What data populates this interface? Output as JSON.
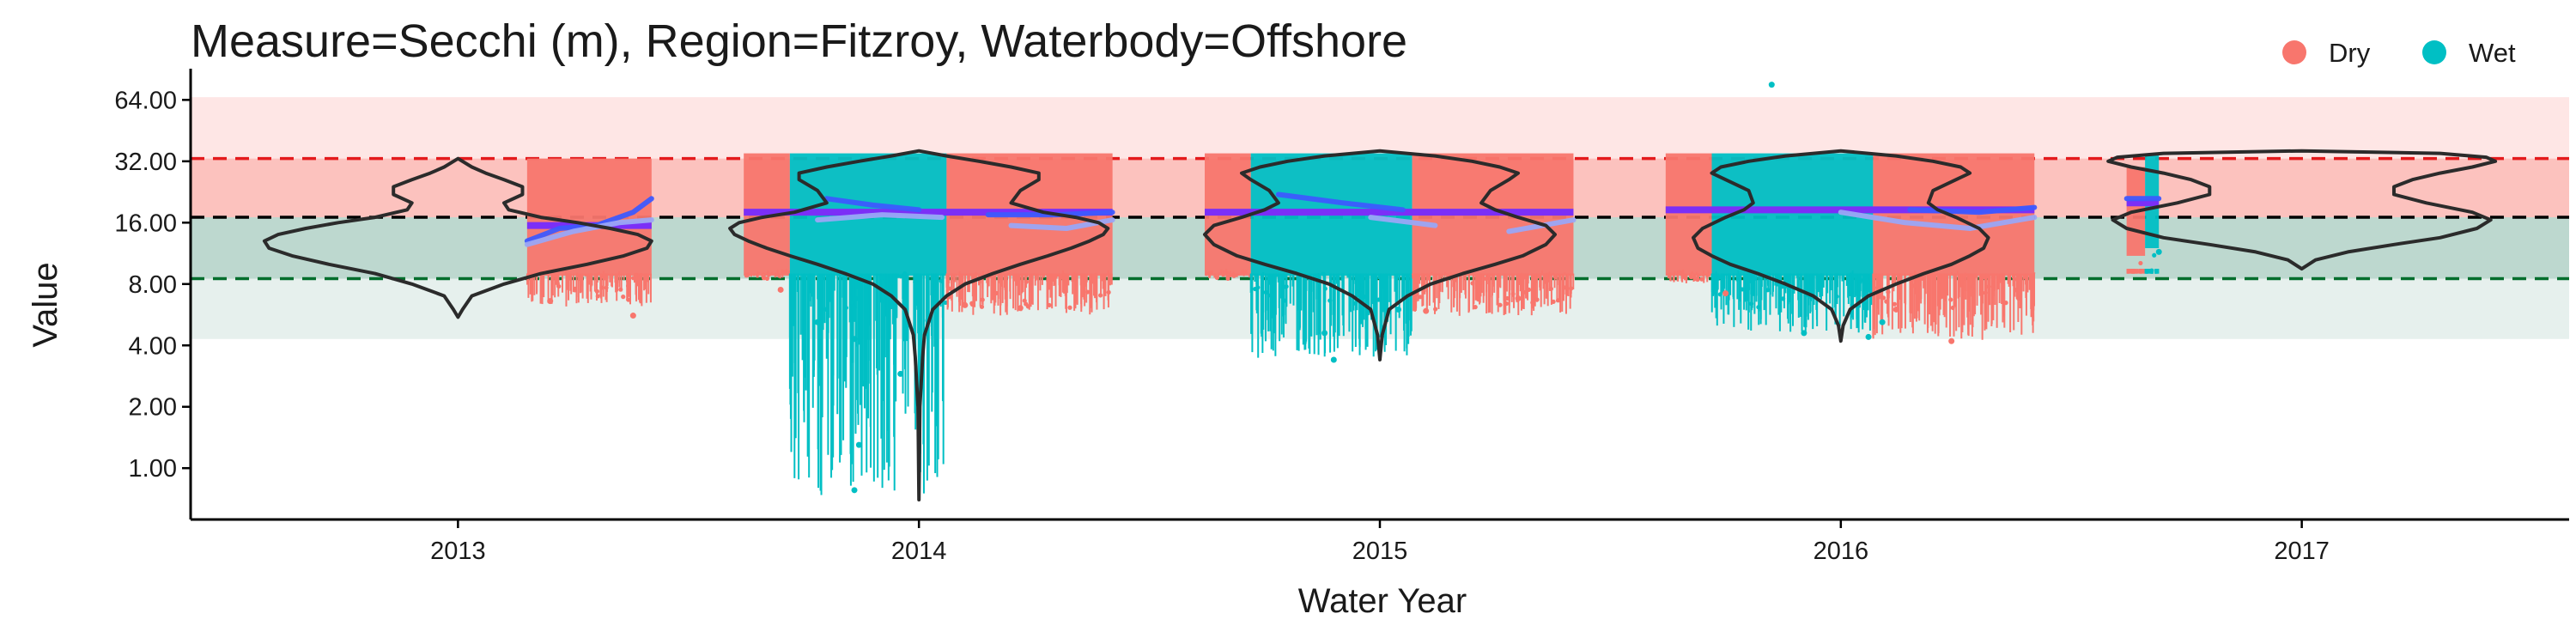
{
  "chart_data": {
    "type": "scatter",
    "title": "Measure=Secchi (m), Region=Fitzroy, Waterbody=Offshore",
    "xlabel": "Water Year",
    "ylabel": "Value",
    "y_scale": "log2",
    "ylim": [
      0.56,
      75
    ],
    "xlim": [
      2012.42,
      2017.58
    ],
    "x_ticks": [
      2013,
      2014,
      2015,
      2016,
      2017
    ],
    "x_tick_labels": [
      "2013",
      "2014",
      "2015",
      "2016",
      "2017"
    ],
    "y_ticks": [
      1,
      2,
      4,
      8,
      16,
      32,
      64
    ],
    "y_tick_labels": [
      "1.00",
      "2.00",
      "4.00",
      "8.00",
      "16.00",
      "32.00",
      "64.00"
    ],
    "grid": false,
    "legend": {
      "position": "top-right",
      "entries": [
        {
          "label": "Dry",
          "color": "#F8766D"
        },
        {
          "label": "Wet",
          "color": "#00BFC4"
        }
      ]
    },
    "guideline_bands": [
      {
        "from": 17,
        "to": 66,
        "color": "#F8766D",
        "opacity": 0.18
      },
      {
        "from": 17,
        "to": 33,
        "color": "#F8766D",
        "opacity": 0.32
      },
      {
        "from": 4.3,
        "to": 17,
        "color": "#1B7A5A",
        "opacity": 0.11
      },
      {
        "from": 8.5,
        "to": 17,
        "color": "#1B7A5A",
        "opacity": 0.2
      }
    ],
    "reference_lines": [
      {
        "value": 33,
        "color": "#E41A1C"
      },
      {
        "value": 17,
        "color": "#000000"
      },
      {
        "value": 8.5,
        "color": "#006D2C"
      }
    ],
    "season_blocks": [
      {
        "season": "Dry",
        "x0": 2013.15,
        "x1": 2013.42,
        "ymin": 6.2,
        "ymax": 33,
        "median": 15.5
      },
      {
        "season": "Dry",
        "x0": 2013.62,
        "x1": 2013.72,
        "ymin": 8.5,
        "ymax": 35,
        "median": 18
      },
      {
        "season": "Wet",
        "x0": 2013.72,
        "x1": 2014.06,
        "ymin": 0.72,
        "ymax": 35,
        "median": 18.5
      },
      {
        "season": "Dry",
        "x0": 2014.06,
        "x1": 2014.42,
        "ymin": 5.5,
        "ymax": 35,
        "median": 17.5
      },
      {
        "season": "Dry",
        "x0": 2014.62,
        "x1": 2014.72,
        "ymin": 8.5,
        "ymax": 35,
        "median": 18
      },
      {
        "season": "Wet",
        "x0": 2014.72,
        "x1": 2015.07,
        "ymin": 3.3,
        "ymax": 35,
        "median": 18.5
      },
      {
        "season": "Dry",
        "x0": 2015.07,
        "x1": 2015.42,
        "ymin": 5.5,
        "ymax": 35,
        "median": 17.5
      },
      {
        "season": "Dry",
        "x0": 2015.62,
        "x1": 2015.72,
        "ymin": 8,
        "ymax": 35,
        "median": 18
      },
      {
        "season": "Wet",
        "x0": 2015.72,
        "x1": 2016.07,
        "ymin": 4.5,
        "ymax": 35,
        "median": 19
      },
      {
        "season": "Dry",
        "x0": 2016.07,
        "x1": 2016.42,
        "ymin": 4.2,
        "ymax": 35,
        "median": 18
      },
      {
        "season": "Dry",
        "x0": 2016.62,
        "x1": 2016.66,
        "ymin": 11,
        "ymax": 30,
        "median": 20
      },
      {
        "season": "Wet",
        "x0": 2016.66,
        "x1": 2016.69,
        "ymin": 12,
        "ymax": 35,
        "median": 21
      }
    ],
    "outliers": [
      {
        "x": 2013.38,
        "y": 5.6,
        "season": "Dry"
      },
      {
        "x": 2013.2,
        "y": 6.6,
        "season": "Dry"
      },
      {
        "x": 2013.86,
        "y": 4.3,
        "season": "Wet"
      },
      {
        "x": 2013.88,
        "y": 2.6,
        "season": "Wet"
      },
      {
        "x": 2013.87,
        "y": 1.3,
        "season": "Wet"
      },
      {
        "x": 2013.86,
        "y": 0.78,
        "season": "Wet"
      },
      {
        "x": 2013.96,
        "y": 2.9,
        "season": "Wet"
      },
      {
        "x": 2014.02,
        "y": 5.3,
        "season": "Wet"
      },
      {
        "x": 2014.1,
        "y": 6.3,
        "season": "Dry"
      },
      {
        "x": 2014.22,
        "y": 6.1,
        "season": "Dry"
      },
      {
        "x": 2013.7,
        "y": 7.5,
        "season": "Dry"
      },
      {
        "x": 2013.78,
        "y": 5.2,
        "season": "Wet"
      },
      {
        "x": 2014.9,
        "y": 3.4,
        "season": "Wet"
      },
      {
        "x": 2014.88,
        "y": 4.6,
        "season": "Wet"
      },
      {
        "x": 2014.96,
        "y": 5.5,
        "season": "Wet"
      },
      {
        "x": 2015.1,
        "y": 5.9,
        "season": "Dry"
      },
      {
        "x": 2015.3,
        "y": 6.8,
        "season": "Dry"
      },
      {
        "x": 2015.04,
        "y": 6.0,
        "season": "Wet"
      },
      {
        "x": 2015.92,
        "y": 4.6,
        "season": "Wet"
      },
      {
        "x": 2016.09,
        "y": 5.2,
        "season": "Wet"
      },
      {
        "x": 2016.06,
        "y": 4.4,
        "season": "Wet"
      },
      {
        "x": 2016.24,
        "y": 4.2,
        "season": "Dry"
      },
      {
        "x": 2016.12,
        "y": 6.0,
        "season": "Dry"
      },
      {
        "x": 2015.75,
        "y": 7.2,
        "season": "Dry"
      },
      {
        "x": 2015.85,
        "y": 76,
        "season": "Wet"
      },
      {
        "x": 2016.69,
        "y": 11.5,
        "season": "Wet"
      }
    ],
    "trend_lines": [
      {
        "name": "trend-dark",
        "color": "#3D5AFE",
        "width": 6,
        "points": [
          [
            2013.15,
            13
          ],
          [
            2013.22,
            15
          ],
          [
            2013.3,
            15.5
          ],
          [
            2013.38,
            18
          ],
          [
            2013.42,
            21
          ],
          [
            2013.62,
            19.5
          ],
          [
            2013.8,
            21
          ],
          [
            2013.9,
            19.5
          ],
          [
            2014.0,
            18.5
          ],
          [
            2014.15,
            17.5
          ],
          [
            2014.3,
            17.5
          ],
          [
            2014.42,
            18
          ],
          [
            2014.62,
            19.5
          ],
          [
            2014.78,
            22
          ],
          [
            2014.92,
            20
          ],
          [
            2015.05,
            18.5
          ],
          [
            2015.2,
            17.5
          ],
          [
            2015.42,
            17.5
          ],
          [
            2015.62,
            19
          ],
          [
            2015.8,
            21.5
          ],
          [
            2016.0,
            20
          ],
          [
            2016.15,
            18.5
          ],
          [
            2016.3,
            18
          ],
          [
            2016.42,
            19
          ],
          [
            2016.62,
            21
          ],
          [
            2016.69,
            21
          ]
        ]
      },
      {
        "name": "trend-light",
        "color": "#9AA7F5",
        "width": 6,
        "points": [
          [
            2013.15,
            12.5
          ],
          [
            2013.25,
            14.5
          ],
          [
            2013.35,
            16
          ],
          [
            2013.42,
            16.5
          ],
          [
            2013.62,
            17
          ],
          [
            2013.78,
            16.5
          ],
          [
            2013.92,
            17.5
          ],
          [
            2014.05,
            17
          ],
          [
            2014.2,
            15.5
          ],
          [
            2014.32,
            15
          ],
          [
            2014.42,
            16.5
          ],
          [
            2014.62,
            17.5
          ],
          [
            2014.8,
            18.5
          ],
          [
            2014.98,
            17
          ],
          [
            2015.12,
            15.5
          ],
          [
            2015.28,
            14.5
          ],
          [
            2015.42,
            16.5
          ],
          [
            2015.62,
            17.5
          ],
          [
            2015.82,
            19
          ],
          [
            2016.0,
            18
          ],
          [
            2016.14,
            16
          ],
          [
            2016.28,
            15
          ],
          [
            2016.42,
            17
          ]
        ]
      }
    ],
    "medians": [
      {
        "x0": 2013.15,
        "x1": 2013.42,
        "y": 15.5
      },
      {
        "x0": 2013.62,
        "x1": 2014.42,
        "y": 18
      },
      {
        "x0": 2014.62,
        "x1": 2015.42,
        "y": 18
      },
      {
        "x0": 2015.62,
        "x1": 2016.42,
        "y": 18.5
      },
      {
        "x0": 2016.62,
        "x1": 2016.69,
        "y": 20
      }
    ],
    "violins": [
      {
        "center": 2013.0,
        "ymin": 5.5,
        "ymax": 33,
        "profile": [
          [
            5.5,
            0.0
          ],
          [
            6.0,
            0.01
          ],
          [
            7.0,
            0.03
          ],
          [
            8.0,
            0.1
          ],
          [
            9.0,
            0.18
          ],
          [
            10.0,
            0.28
          ],
          [
            11.0,
            0.36
          ],
          [
            12.0,
            0.41
          ],
          [
            13.0,
            0.42
          ],
          [
            14.0,
            0.39
          ],
          [
            15.0,
            0.33
          ],
          [
            16.0,
            0.26
          ],
          [
            17.0,
            0.18
          ],
          [
            18.5,
            0.11
          ],
          [
            20.0,
            0.1
          ],
          [
            22.0,
            0.14
          ],
          [
            24.0,
            0.14
          ],
          [
            26.0,
            0.1
          ],
          [
            28.0,
            0.06
          ],
          [
            30.0,
            0.03
          ],
          [
            33.0,
            0.0
          ]
        ]
      },
      {
        "center": 2014.0,
        "ymin": 0.7,
        "ymax": 36,
        "profile": [
          [
            0.7,
            0.0
          ],
          [
            2.0,
            0.002
          ],
          [
            3.5,
            0.008
          ],
          [
            4.5,
            0.012
          ],
          [
            6.0,
            0.03
          ],
          [
            7.0,
            0.06
          ],
          [
            8.0,
            0.1
          ],
          [
            9.0,
            0.16
          ],
          [
            10.0,
            0.22
          ],
          [
            11.0,
            0.28
          ],
          [
            12.0,
            0.33
          ],
          [
            13.0,
            0.37
          ],
          [
            14.0,
            0.4
          ],
          [
            15.0,
            0.41
          ],
          [
            16.0,
            0.39
          ],
          [
            17.0,
            0.34
          ],
          [
            18.0,
            0.27
          ],
          [
            20.0,
            0.2
          ],
          [
            23.0,
            0.22
          ],
          [
            26.0,
            0.26
          ],
          [
            28.0,
            0.26
          ],
          [
            30.0,
            0.2
          ],
          [
            32.0,
            0.13
          ],
          [
            34.0,
            0.06
          ],
          [
            36.0,
            0.0
          ]
        ]
      },
      {
        "center": 2015.0,
        "ymin": 3.4,
        "ymax": 36,
        "profile": [
          [
            3.4,
            0.0
          ],
          [
            4.5,
            0.005
          ],
          [
            6.0,
            0.02
          ],
          [
            7.0,
            0.06
          ],
          [
            8.0,
            0.11
          ],
          [
            9.0,
            0.18
          ],
          [
            10.0,
            0.25
          ],
          [
            11.0,
            0.31
          ],
          [
            12.5,
            0.36
          ],
          [
            14.0,
            0.38
          ],
          [
            15.5,
            0.36
          ],
          [
            17.0,
            0.3
          ],
          [
            18.5,
            0.25
          ],
          [
            20.0,
            0.22
          ],
          [
            23.0,
            0.24
          ],
          [
            26.0,
            0.28
          ],
          [
            28.0,
            0.3
          ],
          [
            30.0,
            0.26
          ],
          [
            32.0,
            0.2
          ],
          [
            34.0,
            0.12
          ],
          [
            36.0,
            0.0
          ]
        ]
      },
      {
        "center": 2016.0,
        "ymin": 4.2,
        "ymax": 36,
        "profile": [
          [
            4.2,
            0.0
          ],
          [
            5.0,
            0.005
          ],
          [
            6.0,
            0.02
          ],
          [
            7.0,
            0.06
          ],
          [
            8.0,
            0.12
          ],
          [
            9.0,
            0.18
          ],
          [
            10.0,
            0.24
          ],
          [
            11.0,
            0.28
          ],
          [
            12.0,
            0.31
          ],
          [
            13.5,
            0.32
          ],
          [
            15.0,
            0.3
          ],
          [
            17.0,
            0.25
          ],
          [
            18.5,
            0.21
          ],
          [
            20.0,
            0.19
          ],
          [
            23.0,
            0.2
          ],
          [
            26.0,
            0.25
          ],
          [
            28.0,
            0.28
          ],
          [
            30.0,
            0.26
          ],
          [
            32.0,
            0.2
          ],
          [
            34.0,
            0.12
          ],
          [
            36.0,
            0.0
          ]
        ]
      },
      {
        "center": 2017.0,
        "ymin": 9.5,
        "ymax": 36,
        "profile": [
          [
            9.5,
            0.0
          ],
          [
            10.5,
            0.03
          ],
          [
            11.5,
            0.1
          ],
          [
            12.5,
            0.2
          ],
          [
            13.5,
            0.3
          ],
          [
            15.0,
            0.38
          ],
          [
            16.5,
            0.41
          ],
          [
            18.0,
            0.37
          ],
          [
            20.0,
            0.27
          ],
          [
            22.0,
            0.2
          ],
          [
            24.0,
            0.2
          ],
          [
            26.0,
            0.24
          ],
          [
            28.0,
            0.3
          ],
          [
            30.0,
            0.37
          ],
          [
            32.0,
            0.42
          ],
          [
            33.5,
            0.4
          ],
          [
            35.0,
            0.3
          ],
          [
            36.0,
            0.0
          ]
        ]
      }
    ]
  }
}
